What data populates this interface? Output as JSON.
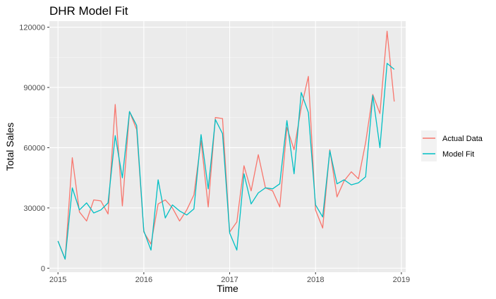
{
  "chart_data": {
    "type": "line",
    "title": "DHR Model Fit",
    "xlabel": "Time",
    "ylabel": "Total Sales",
    "xlim": [
      2014.9,
      2019.05
    ],
    "ylim": [
      -2000,
      123000
    ],
    "x_ticks": [
      2015,
      2016,
      2017,
      2018,
      2019
    ],
    "x_tick_labels": [
      "2015",
      "2016",
      "2017",
      "2018",
      "2019"
    ],
    "y_ticks": [
      0,
      30000,
      60000,
      90000,
      120000
    ],
    "y_tick_labels": [
      "0",
      "30000",
      "60000",
      "90000",
      "120000"
    ],
    "grid": true,
    "background": "#ebebeb",
    "legend_position": "right",
    "x_start": 2015,
    "x_step": 0.08333,
    "series": [
      {
        "name": "Actual Data",
        "color": "#f8766d",
        "values": [
          13500,
          4500,
          55000,
          28000,
          23500,
          34000,
          33500,
          27000,
          81500,
          31000,
          78000,
          69000,
          18000,
          12000,
          32000,
          34000,
          30000,
          23500,
          29000,
          36500,
          63500,
          30500,
          75000,
          74500,
          18000,
          23000,
          51000,
          38500,
          56500,
          40000,
          38500,
          30500,
          70000,
          59000,
          80000,
          95500,
          29000,
          20000,
          59000,
          35500,
          43500,
          48000,
          44500,
          62500,
          86500,
          77000,
          118000,
          83000
        ]
      },
      {
        "name": "Model Fit",
        "color": "#00bfc4",
        "values": [
          13500,
          4500,
          40000,
          29000,
          32500,
          27500,
          29000,
          32500,
          66000,
          45000,
          78000,
          71000,
          18500,
          9000,
          44000,
          25000,
          31500,
          28500,
          26500,
          29500,
          66500,
          39500,
          74000,
          67000,
          17500,
          9000,
          47000,
          32000,
          37500,
          40000,
          39500,
          42000,
          73500,
          47000,
          87500,
          77500,
          31500,
          25500,
          58500,
          42000,
          44000,
          41500,
          42500,
          45500,
          86000,
          60000,
          102000,
          99000
        ]
      }
    ]
  }
}
